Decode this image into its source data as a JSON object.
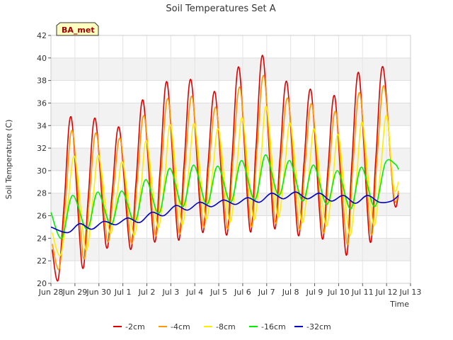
{
  "chart_data": {
    "type": "line",
    "title": "Soil Temperatures Set A",
    "xlabel": "Time",
    "ylabel": "Soil Temperature (C)",
    "badge": "BA_met",
    "ylim": [
      20,
      42
    ],
    "yticks": [
      20,
      22,
      24,
      26,
      28,
      30,
      32,
      34,
      36,
      38,
      40,
      42
    ],
    "xlim": [
      0,
      15
    ],
    "xticks": [
      {
        "x": 0,
        "label": "Jun 28"
      },
      {
        "x": 1,
        "label": "Jun 29"
      },
      {
        "x": 2,
        "label": "Jun 30"
      },
      {
        "x": 3,
        "label": "Jul 1"
      },
      {
        "x": 4,
        "label": "Jul 2"
      },
      {
        "x": 5,
        "label": "Jul 3"
      },
      {
        "x": 6,
        "label": "Jul 4"
      },
      {
        "x": 7,
        "label": "Jul 5"
      },
      {
        "x": 8,
        "label": "Jul 6"
      },
      {
        "x": 9,
        "label": "Jul 7"
      },
      {
        "x": 10,
        "label": "Jul 8"
      },
      {
        "x": 11,
        "label": "Jul 9"
      },
      {
        "x": 12,
        "label": "Jul 10"
      },
      {
        "x": 13,
        "label": "Jul 11"
      },
      {
        "x": 14,
        "label": "Jul 12"
      },
      {
        "x": 15,
        "label": "Jul 13"
      }
    ],
    "x_unit": "days since Jun 28 00:00",
    "grid": true,
    "legend_position": "bottom",
    "series": [
      {
        "name": "-2cm",
        "color": "#dd0000",
        "x": [
          0.05,
          0.3,
          0.55,
          0.85,
          1.3,
          1.55,
          1.85,
          2.3,
          2.55,
          2.85,
          3.3,
          3.55,
          3.85,
          4.3,
          4.55,
          4.85,
          5.3,
          5.55,
          5.85,
          6.3,
          6.55,
          6.85,
          7.3,
          7.55,
          7.85,
          8.3,
          8.55,
          8.85,
          9.3,
          9.55,
          9.85,
          10.3,
          10.55,
          10.85,
          11.3,
          11.55,
          11.85,
          12.3,
          12.55,
          12.85,
          13.3,
          13.55,
          13.85,
          14.3,
          14.5
        ],
        "y": [
          23.0,
          20.3,
          27.0,
          34.7,
          21.5,
          27.5,
          34.6,
          23.3,
          28.0,
          33.8,
          23.1,
          29.0,
          36.2,
          23.8,
          30.0,
          37.8,
          24.0,
          30.5,
          38.0,
          24.7,
          30.5,
          36.9,
          24.4,
          31.0,
          39.1,
          24.7,
          32.0,
          40.1,
          25.1,
          31.0,
          37.8,
          24.4,
          30.5,
          37.1,
          24.1,
          30.0,
          36.5,
          22.6,
          30.5,
          38.6,
          23.8,
          31.0,
          39.2,
          27.5,
          28.0
        ]
      },
      {
        "name": "-4cm",
        "color": "#ff9900",
        "x": [
          0.05,
          0.35,
          0.6,
          0.9,
          1.35,
          1.6,
          1.9,
          2.35,
          2.6,
          2.9,
          3.35,
          3.6,
          3.9,
          4.35,
          4.6,
          4.9,
          5.35,
          5.6,
          5.9,
          6.35,
          6.6,
          6.9,
          7.35,
          7.6,
          7.9,
          8.35,
          8.6,
          8.9,
          9.35,
          9.6,
          9.9,
          10.35,
          10.6,
          10.9,
          11.35,
          11.6,
          11.9,
          12.35,
          12.6,
          12.9,
          13.35,
          13.6,
          13.9,
          14.3,
          14.5
        ],
        "y": [
          23.5,
          21.3,
          27.0,
          33.5,
          22.3,
          27.5,
          33.3,
          23.8,
          28.0,
          32.8,
          23.6,
          29.0,
          34.8,
          24.3,
          30.0,
          36.3,
          24.5,
          30.5,
          36.5,
          25.1,
          30.5,
          35.5,
          24.9,
          31.0,
          37.3,
          25.1,
          32.0,
          38.3,
          25.5,
          31.0,
          36.3,
          24.9,
          30.5,
          35.8,
          24.6,
          30.0,
          35.1,
          23.5,
          30.5,
          36.8,
          24.4,
          31.0,
          37.5,
          27.8,
          28.2
        ]
      },
      {
        "name": "-8cm",
        "color": "#ffee00",
        "x": [
          0.05,
          0.4,
          0.7,
          1.0,
          1.45,
          1.75,
          2.0,
          2.45,
          2.75,
          3.0,
          3.45,
          3.75,
          4.0,
          4.45,
          4.75,
          5.0,
          5.45,
          5.75,
          6.0,
          6.45,
          6.75,
          7.0,
          7.45,
          7.75,
          8.0,
          8.45,
          8.75,
          9.0,
          9.45,
          9.75,
          10.0,
          10.45,
          10.75,
          11.0,
          11.45,
          11.75,
          12.0,
          12.45,
          12.75,
          13.0,
          13.45,
          13.75,
          14.0,
          14.3,
          14.5
        ],
        "y": [
          24.5,
          22.5,
          27.0,
          31.2,
          23.0,
          27.5,
          31.3,
          24.5,
          27.8,
          30.7,
          24.3,
          28.5,
          32.6,
          25.0,
          29.5,
          34.0,
          25.3,
          30.0,
          34.1,
          25.8,
          30.0,
          33.6,
          25.5,
          30.3,
          34.6,
          25.7,
          30.8,
          35.6,
          26.0,
          30.3,
          34.1,
          25.5,
          29.5,
          33.6,
          25.2,
          29.0,
          33.1,
          24.3,
          29.5,
          34.2,
          25.2,
          30.0,
          34.9,
          28.5,
          29.0
        ]
      },
      {
        "name": "-16cm",
        "color": "#00ee00",
        "x": [
          0.0,
          0.45,
          0.9,
          1.5,
          1.95,
          2.5,
          2.95,
          3.5,
          3.95,
          4.5,
          4.95,
          5.5,
          5.95,
          6.5,
          6.95,
          7.5,
          7.95,
          8.5,
          8.95,
          9.5,
          9.95,
          10.5,
          10.95,
          11.5,
          11.95,
          12.5,
          12.95,
          13.5,
          13.95,
          14.35,
          14.5
        ],
        "y": [
          26.3,
          24.0,
          27.8,
          24.8,
          28.1,
          25.2,
          28.2,
          25.5,
          29.2,
          26.2,
          30.2,
          26.8,
          30.5,
          27.0,
          30.4,
          27.2,
          30.9,
          27.4,
          31.4,
          27.8,
          30.9,
          27.3,
          30.5,
          27.0,
          30.0,
          26.6,
          30.3,
          26.8,
          30.7,
          30.6,
          30.1
        ]
      },
      {
        "name": "-32cm",
        "color": "#0000cc",
        "x": [
          0.0,
          0.7,
          1.2,
          1.7,
          2.2,
          2.7,
          3.2,
          3.7,
          4.2,
          4.7,
          5.2,
          5.7,
          6.2,
          6.7,
          7.2,
          7.7,
          8.2,
          8.7,
          9.2,
          9.7,
          10.2,
          10.7,
          11.2,
          11.7,
          12.2,
          12.7,
          13.2,
          13.7,
          14.2,
          14.5
        ],
        "y": [
          25.0,
          24.5,
          25.3,
          24.8,
          25.5,
          25.2,
          25.8,
          25.4,
          26.3,
          26.0,
          26.9,
          26.5,
          27.2,
          26.8,
          27.4,
          27.0,
          27.6,
          27.2,
          28.0,
          27.5,
          28.1,
          27.5,
          28.0,
          27.3,
          27.8,
          27.1,
          27.8,
          27.2,
          27.3,
          27.8
        ]
      }
    ]
  }
}
